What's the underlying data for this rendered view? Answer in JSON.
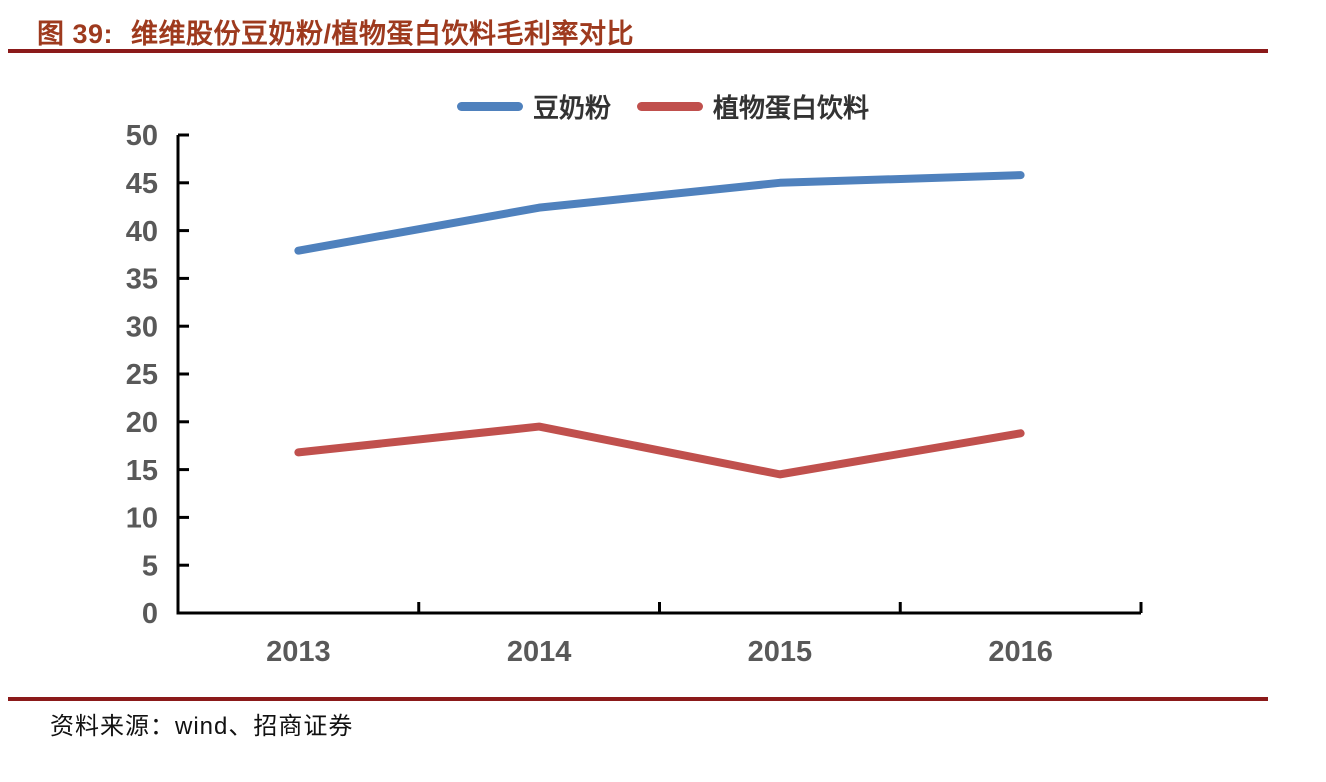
{
  "figure": {
    "label": "图 39:",
    "title": "维维股份豆奶粉/植物蛋白饮料毛利率对比",
    "source": "资料来源：wind、招商证券"
  },
  "legend": {
    "items": [
      {
        "label": "豆奶粉",
        "color": "#4F81BD"
      },
      {
        "label": "植物蛋白饮料",
        "color": "#C0504D"
      }
    ]
  },
  "colors": {
    "title_text": "#9E3A1E",
    "rule": "#8B1A1A",
    "axis": "#000000",
    "tick_label": "#595959",
    "legend_label": "#333333",
    "source_text": "#111111"
  },
  "chart_data": {
    "type": "line",
    "categories": [
      "2013",
      "2014",
      "2015",
      "2016"
    ],
    "series": [
      {
        "name": "豆奶粉",
        "color": "#4F81BD",
        "values": [
          37.9,
          42.4,
          45.0,
          45.8
        ]
      },
      {
        "name": "植物蛋白饮料",
        "color": "#C0504D",
        "values": [
          16.8,
          19.5,
          14.5,
          18.8
        ]
      }
    ],
    "title": "维维股份豆奶粉/植物蛋白饮料毛利率对比",
    "xlabel": "",
    "ylabel": "",
    "ylim": [
      0,
      50
    ],
    "ytick_step": 5,
    "grid": false,
    "legend_position": "top-center"
  }
}
